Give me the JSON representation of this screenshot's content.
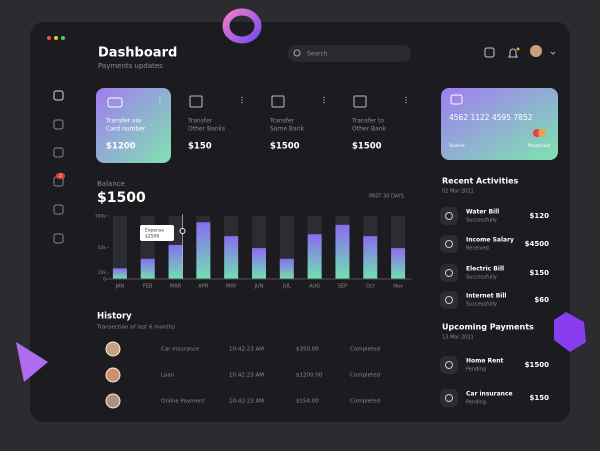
{
  "header": {
    "title": "Dashboard",
    "subtitle": "Payments updates",
    "search_placeholder": "Search"
  },
  "sidebar_badge": "2",
  "transfers": [
    {
      "label": [
        "Transfer via",
        "Card number"
      ],
      "amount": "$1200"
    },
    {
      "label": [
        "Transfer",
        "Other Banks"
      ],
      "amount": "$150"
    },
    {
      "label": [
        "Transfer",
        "Same Bank"
      ],
      "amount": "$1500"
    },
    {
      "label": [
        "Transfer to",
        "Other Bank"
      ],
      "amount": "$1500"
    }
  ],
  "card": {
    "number": "4562 1122 4595 7852",
    "holder": "Student",
    "brand": "Mastercard"
  },
  "balance": {
    "label": "Balance",
    "amount": "$1500",
    "period": "PAST 30 DAYS",
    "tooltip": {
      "label": "Expense",
      "amount": "$2500"
    },
    "chart": {
      "type": "bar",
      "categories": [
        "JAN",
        "FEB",
        "MAR",
        "APR",
        "MAY",
        "JUN",
        "JUL",
        "AUG",
        "SEP",
        "Oct",
        "Nov"
      ],
      "values": [
        17000,
        32000,
        54000,
        90000,
        68000,
        49000,
        32000,
        71000,
        86000,
        68000,
        49000
      ],
      "ylim": [
        0,
        100000
      ],
      "yticks": [
        0,
        {
          "value": 10000,
          "label": "10k"
        },
        {
          "value": 50000,
          "label": "50k"
        },
        {
          "value": 100000,
          "label": "100k"
        }
      ]
    }
  },
  "history": {
    "title": "History",
    "subtitle": "Transection of last 6 months",
    "rows": [
      [
        "Car Insurance",
        "10:42:23 AM",
        "$350.00",
        "Completed"
      ],
      [
        "Loan",
        "10:42:23 AM",
        "$1200.00",
        "Completed"
      ],
      [
        "Online Payment",
        "10:42:23 AM",
        "$154.00",
        "Completed"
      ]
    ]
  },
  "recent_activities": {
    "title": "Recent Activities",
    "date": "02 Mar 2021",
    "items": [
      {
        "name": "Water Bill",
        "status": "Successfully",
        "amount": "$120"
      },
      {
        "name": "Income Salary",
        "status": "Received",
        "amount": "$4500"
      },
      {
        "name": "Electric Bill",
        "status": "Successfully",
        "amount": "$150"
      },
      {
        "name": "Internet Bill",
        "status": "Successfully",
        "amount": "$60"
      }
    ]
  },
  "upcoming_payments": {
    "title": "Upcoming Payments",
    "date": "13 Mar 2021",
    "items": [
      {
        "name": "Home Rent",
        "status": "Pending",
        "amount": "$1500"
      },
      {
        "name": "Car insurance",
        "status": "Pending",
        "amount": "$150"
      }
    ]
  }
}
